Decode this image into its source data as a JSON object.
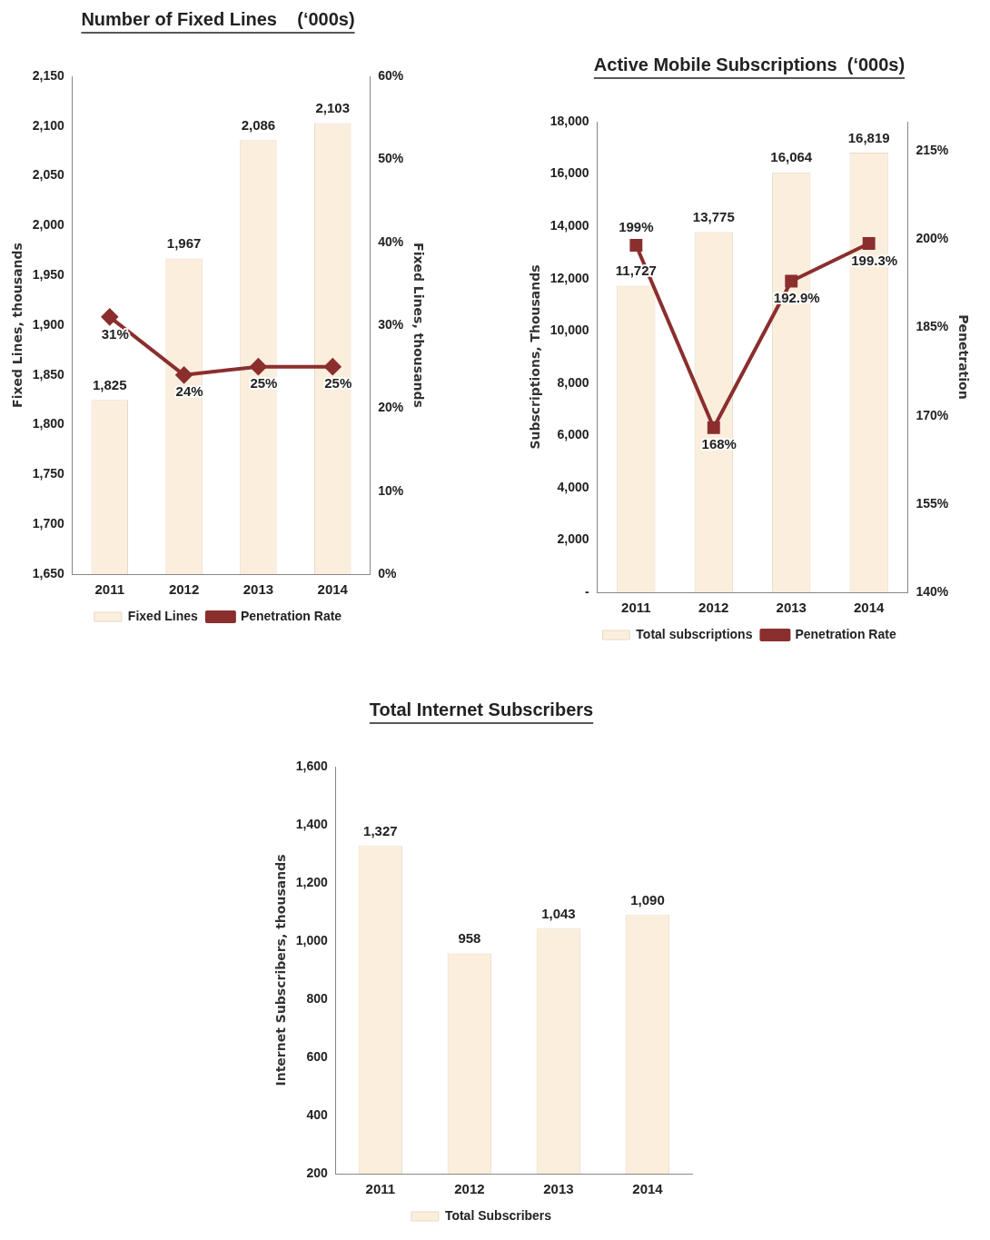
{
  "chart_data": [
    {
      "type": "bar",
      "title": "Number of Fixed Lines    (‘000s)",
      "categories": [
        "2011",
        "2012",
        "2013",
        "2014"
      ],
      "ylabel": "Fixed Lines, thousands",
      "y2label": "Fixed Lines, thousands",
      "series": [
        {
          "name": "Fixed Lines",
          "color": "#fbeedd",
          "values": [
            1825,
            1967,
            2086,
            2103
          ],
          "value_labels": [
            "1,825",
            "1,967",
            "2,086",
            "2,103"
          ]
        },
        {
          "name": "Penetration Rate",
          "type": "line",
          "axis": "y2",
          "color": "#8b2e2e",
          "marker": "diamond",
          "values": [
            31,
            24,
            25,
            25
          ],
          "value_labels": [
            "31%",
            "24%",
            "25%",
            "25%"
          ]
        }
      ],
      "ylim": [
        1650,
        2150
      ],
      "yticks": [
        {
          "value": 1650,
          "label": "1,650"
        },
        {
          "value": 1700,
          "label": "1,700"
        },
        {
          "value": 1750,
          "label": "1,750"
        },
        {
          "value": 1800,
          "label": "1,800"
        },
        {
          "value": 1850,
          "label": "1,850"
        },
        {
          "value": 1900,
          "label": "1,900"
        },
        {
          "value": 1950,
          "label": "1,950"
        },
        {
          "value": 2000,
          "label": "2,000"
        },
        {
          "value": 2050,
          "label": "2,050"
        },
        {
          "value": 2100,
          "label": "2,100"
        },
        {
          "value": 2150,
          "label": "2,150"
        }
      ],
      "y2lim": [
        0,
        60
      ],
      "y2ticks": [
        {
          "value": 0,
          "label": "0%"
        },
        {
          "value": 10,
          "label": "10%"
        },
        {
          "value": 20,
          "label": "20%"
        },
        {
          "value": 30,
          "label": "30%"
        },
        {
          "value": 40,
          "label": "40%"
        },
        {
          "value": 50,
          "label": "50%"
        },
        {
          "value": 60,
          "label": "60%"
        }
      ],
      "grid": false,
      "legend": "bottom"
    },
    {
      "type": "bar",
      "title": "Active Mobile Subscriptions  (‘000s)",
      "categories": [
        "2011",
        "2012",
        "2013",
        "2014"
      ],
      "ylabel": "Subscriptions, Thousands",
      "y2label": "Penetration",
      "series": [
        {
          "name": "Total subscriptions",
          "color": "#fbeedd",
          "values": [
            11727,
            13775,
            16064,
            16819
          ],
          "value_labels": [
            "11,727",
            "13,775",
            "16,064",
            "16,819"
          ]
        },
        {
          "name": "Penetration Rate",
          "type": "line",
          "axis": "y2",
          "color": "#8b2e2e",
          "marker": "square",
          "values": [
            199,
            168,
            192.9,
            199.3
          ],
          "value_labels": [
            "199%",
            "168%",
            "192.9%",
            "199.3%"
          ]
        }
      ],
      "ylim": [
        0,
        18000
      ],
      "yticks": [
        {
          "value": 0,
          "label": "-"
        },
        {
          "value": 2000,
          "label": "2,000"
        },
        {
          "value": 4000,
          "label": "4,000"
        },
        {
          "value": 6000,
          "label": "6,000"
        },
        {
          "value": 8000,
          "label": "8,000"
        },
        {
          "value": 10000,
          "label": "10,000"
        },
        {
          "value": 12000,
          "label": "12,000"
        },
        {
          "value": 14000,
          "label": "14,000"
        },
        {
          "value": 16000,
          "label": "16,000"
        },
        {
          "value": 18000,
          "label": "18,000"
        }
      ],
      "y2lim": [
        140,
        220
      ],
      "y2ticks": [
        {
          "value": 140,
          "label": "140%"
        },
        {
          "value": 155,
          "label": "155%"
        },
        {
          "value": 170,
          "label": "170%"
        },
        {
          "value": 185,
          "label": "185%"
        },
        {
          "value": 200,
          "label": "200%"
        },
        {
          "value": 215,
          "label": "215%"
        }
      ],
      "grid": false,
      "legend": "bottom"
    },
    {
      "type": "bar",
      "title": "Total Internet Subscribers",
      "categories": [
        "2011",
        "2012",
        "2013",
        "2014"
      ],
      "ylabel": "Internet Subscribers, thousands",
      "series": [
        {
          "name": "Total Subscribers",
          "color": "#fbeedd",
          "values": [
            1327,
            958,
            1043,
            1090
          ],
          "value_labels": [
            "1,327",
            "958",
            "1,043",
            "1,090"
          ]
        }
      ],
      "ylim": [
        200,
        1600
      ],
      "yticks": [
        200,
        400,
        600,
        800,
        {
          "value": 1000,
          "label": "1,000"
        },
        {
          "value": 1200,
          "label": "1,200"
        },
        {
          "value": 1400,
          "label": "1,400"
        },
        {
          "value": 1600,
          "label": "1,600"
        }
      ],
      "grid": false,
      "legend": "bottom"
    }
  ]
}
